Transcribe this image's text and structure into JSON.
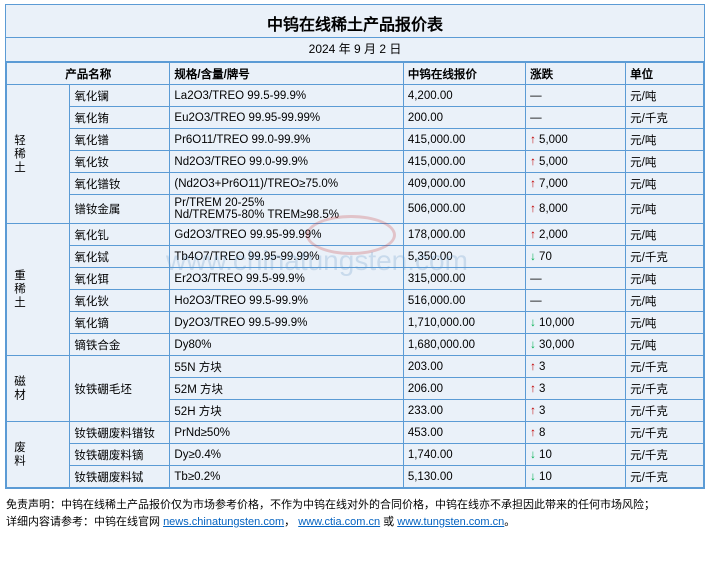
{
  "title": "中钨在线稀土产品报价表",
  "date": "2024 年 9 月 2 日",
  "headers": {
    "name": "产品名称",
    "spec": "规格/含量/牌号",
    "price": "中钨在线报价",
    "change": "涨跌",
    "unit": "单位"
  },
  "groups": [
    {
      "category": "轻稀土",
      "rows": [
        {
          "name": "氧化镧",
          "spec": "La2O3/TREO 99.5-99.9%",
          "price": "4,200.00",
          "change": "—",
          "dir": "none",
          "unit": "元/吨"
        },
        {
          "name": "氧化铕",
          "spec": "Eu2O3/TREO 99.95-99.99%",
          "price": "200.00",
          "change": "—",
          "dir": "none",
          "unit": "元/千克"
        },
        {
          "name": "氧化镨",
          "spec": "Pr6O11/TREO 99.0-99.9%",
          "price": "415,000.00",
          "change": "5,000",
          "dir": "up",
          "unit": "元/吨"
        },
        {
          "name": "氧化钕",
          "spec": "Nd2O3/TREO 99.0-99.9%",
          "price": "415,000.00",
          "change": "5,000",
          "dir": "up",
          "unit": "元/吨"
        },
        {
          "name": "氧化镨钕",
          "spec": "(Nd2O3+Pr6O11)/TREO≥75.0%",
          "price": "409,000.00",
          "change": "7,000",
          "dir": "up",
          "unit": "元/吨"
        },
        {
          "name": "镨钕金属",
          "spec": "Pr/TREM 20-25%\nNd/TREM75-80% TREM≥98.5%",
          "price": "506,000.00",
          "change": "8,000",
          "dir": "up",
          "unit": "元/吨"
        }
      ]
    },
    {
      "category": "重稀土",
      "rows": [
        {
          "name": "氧化钆",
          "spec": "Gd2O3/TREO 99.95-99.99%",
          "price": "178,000.00",
          "change": "2,000",
          "dir": "up",
          "unit": "元/吨"
        },
        {
          "name": "氧化铽",
          "spec": "Tb4O7/TREO 99.95-99.99%",
          "price": "5,350.00",
          "change": "70",
          "dir": "down",
          "unit": "元/千克"
        },
        {
          "name": "氧化铒",
          "spec": "Er2O3/TREO 99.5-99.9%",
          "price": "315,000.00",
          "change": "—",
          "dir": "none",
          "unit": "元/吨"
        },
        {
          "name": "氧化钬",
          "spec": "Ho2O3/TREO 99.5-99.9%",
          "price": "516,000.00",
          "change": "—",
          "dir": "none",
          "unit": "元/吨"
        },
        {
          "name": "氧化镝",
          "spec": "Dy2O3/TREO 99.5-99.9%",
          "price": "1,710,000.00",
          "change": "10,000",
          "dir": "down",
          "unit": "元/吨"
        },
        {
          "name": "镝铁合金",
          "spec": "Dy80%",
          "price": "1,680,000.00",
          "change": "30,000",
          "dir": "down",
          "unit": "元/吨"
        }
      ]
    },
    {
      "category": "磁材",
      "rows": [
        {
          "name": "钕铁硼毛坯",
          "spec": "55N 方块",
          "price": "203.00",
          "change": "3",
          "dir": "up",
          "unit": "元/千克",
          "namerowspan": 3
        },
        {
          "name": "",
          "spec": "52M 方块",
          "price": "206.00",
          "change": "3",
          "dir": "up",
          "unit": "元/千克",
          "skipname": true
        },
        {
          "name": "",
          "spec": "52H 方块",
          "price": "233.00",
          "change": "3",
          "dir": "up",
          "unit": "元/千克",
          "skipname": true
        }
      ]
    },
    {
      "category": "废料",
      "rows": [
        {
          "name": "钕铁硼废料镨钕",
          "spec": "PrNd≥50%",
          "price": "453.00",
          "change": "8",
          "dir": "up",
          "unit": "元/千克"
        },
        {
          "name": "钕铁硼废料镝",
          "spec": "Dy≥0.4%",
          "price": "1,740.00",
          "change": "10",
          "dir": "down",
          "unit": "元/千克"
        },
        {
          "name": "钕铁硼废料铽",
          "spec": "Tb≥0.2%",
          "price": "5,130.00",
          "change": "10",
          "dir": "down",
          "unit": "元/千克"
        }
      ]
    }
  ],
  "footer": {
    "line1_prefix": "免责声明：中钨在线稀土产品报价仅为市场参考价格，不作为中钨在线对外的合同价格，中钨在线亦不承担因此带来的任何市场风险；",
    "line2_prefix": "详细内容请参考：中钨在线官网 ",
    "link1": "news.chinatungsten.com",
    "sep1": "，",
    "link2": "www.ctia.com.cn",
    "sep2": " 或 ",
    "link3": "www.tungsten.com.cn",
    "tail": "。"
  },
  "watermark": "www.chinatungsten.com",
  "colors": {
    "border": "#5b9bd5",
    "bg": "#eaf1f9",
    "up": "#c00000",
    "down": "#00b050",
    "link": "#0563c1"
  }
}
